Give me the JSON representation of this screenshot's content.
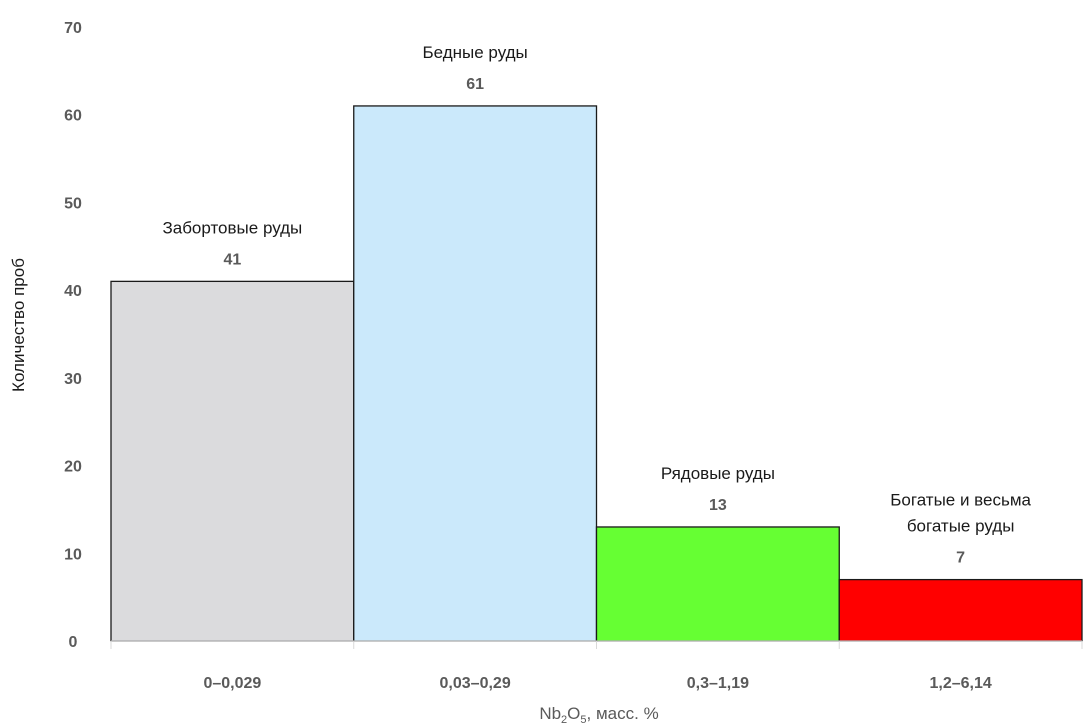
{
  "chart_data": {
    "type": "bar",
    "categories": [
      "0–0,029",
      "0,03–0,29",
      "0,3–1,19",
      "1,2–6,14"
    ],
    "values": [
      41,
      61,
      13,
      7
    ],
    "annotations": [
      [
        "Забортовые руды"
      ],
      [
        "Бедные руды"
      ],
      [
        "Рядовые руды"
      ],
      [
        "Богатые и весьма",
        "богатые руды"
      ]
    ],
    "colors": [
      "#dbdbdd",
      "#cbe9fb",
      "#66ff33",
      "#ff0000"
    ],
    "ylabel": "Количество проб",
    "xlabel": {
      "base": "Nb",
      "sub1": "2",
      "mid": "O",
      "sub2": "5",
      "rest": ", масс. %"
    },
    "ylim": [
      0,
      70
    ],
    "yticks": [
      0,
      10,
      20,
      30,
      40,
      50,
      60,
      70
    ],
    "grid": false
  }
}
